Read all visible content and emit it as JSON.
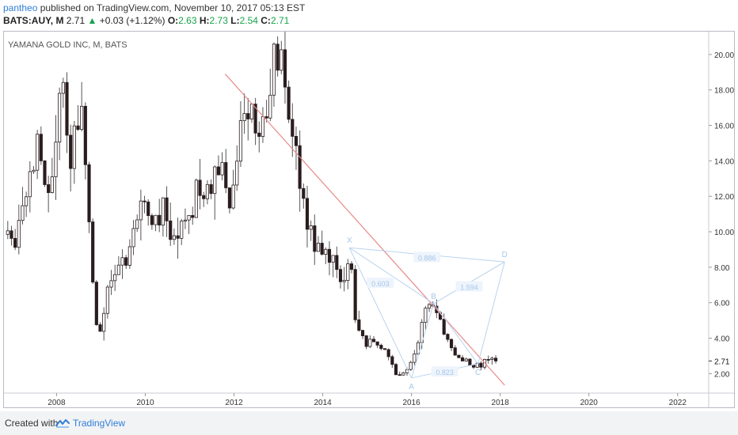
{
  "header": {
    "user": "pantheo",
    "published_text": "published on TradingView.com, November 10, 2017 05:13 EST",
    "symbol": "BATS:AUY, M",
    "last": "2.71",
    "change_arrow": "▲",
    "change": "+0.03 (+1.12%)",
    "open_label": "O:",
    "open": "2.63",
    "high_label": "H:",
    "high": "2.73",
    "low_label": "L:",
    "low": "2.54",
    "close_label": "C:",
    "close": "2.71"
  },
  "chart_title": "YAMANA GOLD INC, M, BATS",
  "footer": {
    "created_with": "Created with",
    "brand": "TradingView",
    "logo_icon": "tradingview-logo-icon"
  },
  "colors": {
    "up_body": "#ffffff",
    "down_body": "#2a1d1f",
    "wick": "#555555",
    "trendline": "#e88a8a",
    "pattern": "#b9d3ef",
    "pattern_label": "#a8c6ea",
    "accent": "#2f7fd6",
    "up_text": "#16a34a"
  },
  "chart_data": {
    "type": "candlestick",
    "interval": "M",
    "xlim": [
      2006.85,
      2022.7
    ],
    "ylim": [
      0.9,
      21.2
    ],
    "x_ticks": [
      "2008",
      "2010",
      "2012",
      "2014",
      "2016",
      "2018",
      "2020",
      "2022"
    ],
    "y_ticks": [
      "2.00",
      "4.00",
      "6.00",
      "8.00",
      "10.00",
      "12.00",
      "14.00",
      "16.00",
      "18.00",
      "20.00"
    ],
    "last_price_label": "2.71",
    "grid": false,
    "anchors": [
      [
        2006.9,
        9.5
      ],
      [
        2007.05,
        8.7
      ],
      [
        2007.3,
        12.4
      ],
      [
        2007.55,
        15.0
      ],
      [
        2007.75,
        12.0
      ],
      [
        2007.95,
        14.2
      ],
      [
        2008.1,
        18.4
      ],
      [
        2008.3,
        13.8
      ],
      [
        2008.55,
        16.8
      ],
      [
        2008.7,
        11.6
      ],
      [
        2008.85,
        5.6
      ],
      [
        2008.95,
        4.1
      ],
      [
        2009.15,
        6.8
      ],
      [
        2009.4,
        7.6
      ],
      [
        2009.65,
        9.2
      ],
      [
        2009.9,
        11.7
      ],
      [
        2010.15,
        9.9
      ],
      [
        2010.4,
        11.6
      ],
      [
        2010.65,
        9.5
      ],
      [
        2010.95,
        10.7
      ],
      [
        2011.2,
        12.6
      ],
      [
        2011.45,
        12.4
      ],
      [
        2011.7,
        14.1
      ],
      [
        2011.9,
        11.9
      ],
      [
        2012.1,
        15.5
      ],
      [
        2012.3,
        17.4
      ],
      [
        2012.5,
        15.1
      ],
      [
        2012.7,
        16.2
      ],
      [
        2012.9,
        19.3
      ],
      [
        2013.05,
        20.2
      ],
      [
        2013.2,
        16.6
      ],
      [
        2013.4,
        14.9
      ],
      [
        2013.6,
        11.2
      ],
      [
        2013.8,
        9.4
      ],
      [
        2014.0,
        9.1
      ],
      [
        2014.2,
        8.7
      ],
      [
        2014.45,
        7.4
      ],
      [
        2014.6,
        8.6
      ],
      [
        2014.75,
        4.9
      ],
      [
        2014.95,
        3.6
      ],
      [
        2015.1,
        4.1
      ],
      [
        2015.3,
        3.7
      ],
      [
        2015.5,
        2.7
      ],
      [
        2015.7,
        1.85
      ],
      [
        2015.9,
        2.1
      ],
      [
        2016.1,
        3.5
      ],
      [
        2016.3,
        5.4
      ],
      [
        2016.55,
        5.8
      ],
      [
        2016.75,
        4.0
      ],
      [
        2016.9,
        3.4
      ],
      [
        2017.05,
        2.9
      ],
      [
        2017.3,
        2.6
      ],
      [
        2017.5,
        2.45
      ],
      [
        2017.7,
        2.7
      ],
      [
        2017.86,
        2.71
      ]
    ],
    "trendline": {
      "points": [
        [
          2011.8,
          18.9
        ],
        [
          2018.1,
          1.35
        ]
      ]
    },
    "harmonic_pattern": {
      "points": [
        {
          "label": "X",
          "x": 2014.6,
          "y": 9.1
        },
        {
          "label": "A",
          "x": 2016.0,
          "y": 1.75
        },
        {
          "label": "B",
          "x": 2016.5,
          "y": 5.95
        },
        {
          "label": "C",
          "x": 2017.5,
          "y": 2.55
        },
        {
          "label": "D",
          "x": 2018.1,
          "y": 8.3
        }
      ],
      "ratios": [
        {
          "label": "0.603",
          "x": 2015.3,
          "y": 7.1
        },
        {
          "label": "0.886",
          "x": 2016.35,
          "y": 8.55
        },
        {
          "label": "1.594",
          "x": 2017.3,
          "y": 6.9
        },
        {
          "label": "0.823",
          "x": 2016.75,
          "y": 2.1
        }
      ]
    }
  }
}
